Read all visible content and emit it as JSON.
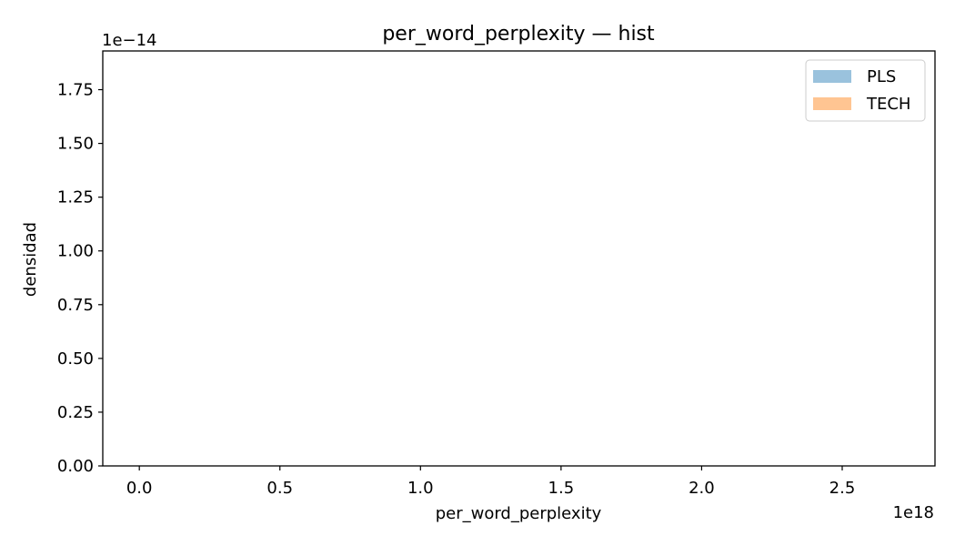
{
  "chart_data": {
    "type": "histogram",
    "title": "per_word_perplexity — hist",
    "xlabel": "per_word_perplexity",
    "ylabel": "densidad",
    "x_offset_label": "1e18",
    "y_offset_label": "1e−14",
    "xlim": [
      -0.13,
      2.83
    ],
    "ylim": [
      0.0,
      1.93
    ],
    "x_ticks": [
      0.0,
      0.5,
      1.0,
      1.5,
      2.0,
      2.5
    ],
    "x_tick_labels": [
      "0.0",
      "0.5",
      "1.0",
      "1.5",
      "2.0",
      "2.5"
    ],
    "y_ticks": [
      0.0,
      0.25,
      0.5,
      0.75,
      1.0,
      1.25,
      1.5,
      1.75
    ],
    "y_tick_labels": [
      "0.00",
      "0.25",
      "0.50",
      "0.75",
      "1.00",
      "1.25",
      "1.50",
      "1.75"
    ],
    "grid": false,
    "legend_placement": "top-right",
    "series": [
      {
        "name": "PLS",
        "color": "#1f77b4",
        "opacity": 0.45,
        "bins": []
      },
      {
        "name": "TECH",
        "color": "#ff7f0e",
        "opacity": 0.45,
        "bins": []
      }
    ]
  }
}
